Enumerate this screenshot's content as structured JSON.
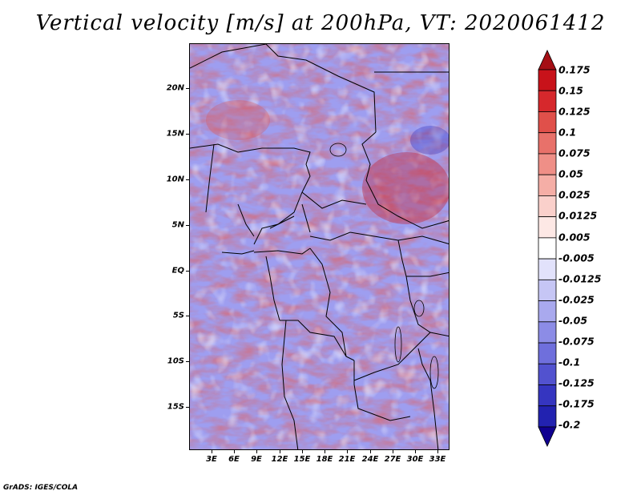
{
  "title": "Vertical velocity [m/s] at 200hPa, VT: 2020061412",
  "footer": "GrADS: IGES/COLA",
  "map": {
    "lat_labels": [
      "20N",
      "15N",
      "10N",
      "5N",
      "EQ",
      "5S",
      "10S",
      "15S"
    ],
    "lon_labels": [
      "3E",
      "6E",
      "9E",
      "12E",
      "15E",
      "18E",
      "21E",
      "24E",
      "27E",
      "30E",
      "33E"
    ]
  },
  "colorbar": {
    "labels": [
      "0.175",
      "0.15",
      "0.125",
      "0.1",
      "0.075",
      "0.05",
      "0.025",
      "0.0125",
      "0.005",
      "-0.005",
      "-0.0125",
      "-0.025",
      "-0.05",
      "-0.075",
      "-0.1",
      "-0.125",
      "-0.175",
      "-0.2"
    ],
    "colors": [
      "#a50f15",
      "#c8121a",
      "#d6282c",
      "#e0504a",
      "#e8716a",
      "#ef8f87",
      "#f5aea6",
      "#fad0cb",
      "#fde8e5",
      "#ffffff",
      "#e2e2fb",
      "#c6c6f5",
      "#a9a9ee",
      "#8c8ce6",
      "#6f6fdc",
      "#5252cf",
      "#3535c0",
      "#2222b0",
      "#100090"
    ]
  }
}
